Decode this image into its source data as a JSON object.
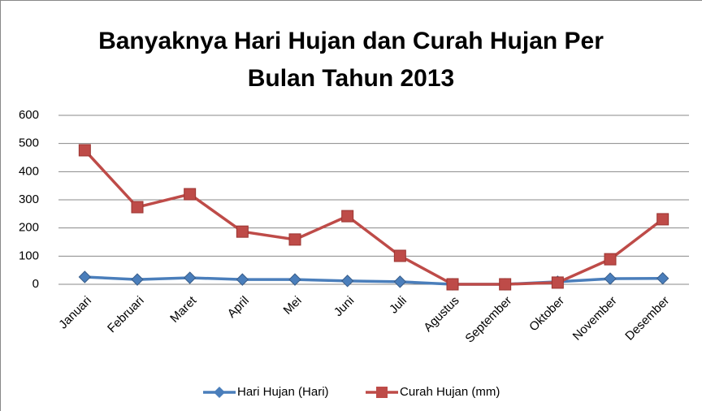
{
  "chart_data": {
    "type": "line",
    "title": [
      "Banyaknya Hari Hujan dan Curah Hujan Per",
      "Bulan Tahun 2013"
    ],
    "categories": [
      "Januari",
      "Februari",
      "Maret",
      "April",
      "Mei",
      "Juni",
      "Juli",
      "Agustus",
      "September",
      "Oktober",
      "November",
      "Desember"
    ],
    "series": [
      {
        "name": "Hari Hujan (Hari)",
        "color": "#4a7ebb",
        "marker": "diamond",
        "values": [
          26,
          17,
          23,
          17,
          17,
          12,
          9,
          0,
          0,
          9,
          20,
          21
        ]
      },
      {
        "name": "Curah Hujan (mm)",
        "color": "#be4b48",
        "marker": "square",
        "values": [
          476,
          274,
          320,
          187,
          159,
          242,
          101,
          0,
          0,
          6,
          89,
          231
        ]
      }
    ],
    "ylim": [
      0,
      600
    ],
    "yticks": [
      0,
      100,
      200,
      300,
      400,
      500,
      600
    ],
    "grid": true,
    "legend": "bottom"
  }
}
